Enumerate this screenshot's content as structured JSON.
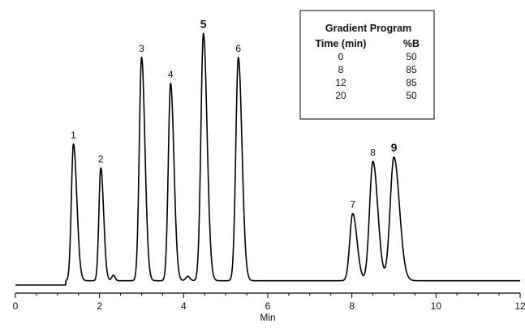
{
  "chart_data": {
    "type": "line",
    "xlabel": "Min",
    "ylabel": "",
    "xlim": [
      0,
      12
    ],
    "ylim": [
      0,
      1.15
    ],
    "x_ticks": [
      0,
      2,
      4,
      6,
      8,
      10,
      12
    ],
    "x_minor_step": 0.5,
    "grid": false,
    "baseline": {
      "before_injection": 0.0,
      "after_injection": 0.02,
      "injection_time": 1.2
    },
    "peaks": [
      {
        "label": "1",
        "rt": 1.38,
        "height": 0.63,
        "width": 0.05,
        "tail": 1.6
      },
      {
        "label": "2",
        "rt": 2.03,
        "height": 0.52,
        "width": 0.045,
        "tail": 1.5
      },
      {
        "label": "3",
        "rt": 3.0,
        "height": 1.03,
        "width": 0.055,
        "tail": 1.45
      },
      {
        "label": "4",
        "rt": 3.69,
        "height": 0.91,
        "width": 0.055,
        "tail": 1.45
      },
      {
        "label": "5",
        "rt": 4.47,
        "height": 1.14,
        "width": 0.06,
        "tail": 1.45
      },
      {
        "label": "6",
        "rt": 5.3,
        "height": 1.03,
        "width": 0.06,
        "tail": 1.45
      },
      {
        "label": "7",
        "rt": 8.02,
        "height": 0.31,
        "width": 0.07,
        "tail": 1.45
      },
      {
        "label": "8",
        "rt": 8.5,
        "height": 0.55,
        "width": 0.08,
        "tail": 1.45
      },
      {
        "label": "9",
        "rt": 9.0,
        "height": 0.57,
        "width": 0.09,
        "tail": 1.45
      }
    ],
    "minor_features": [
      {
        "rt": 2.33,
        "height": 0.025,
        "width": 0.04
      },
      {
        "rt": 4.1,
        "height": 0.02,
        "width": 0.05
      }
    ],
    "gradient_program": {
      "title": "Gradient Program",
      "columns": [
        "Time (min)",
        "%B"
      ],
      "rows": [
        [
          "0",
          "50"
        ],
        [
          "8",
          "85"
        ],
        [
          "12",
          "85"
        ],
        [
          "20",
          "50"
        ]
      ]
    }
  }
}
